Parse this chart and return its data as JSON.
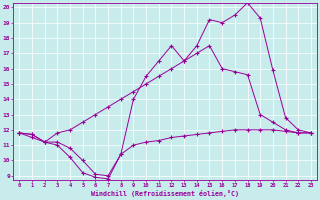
{
  "xlabel": "Windchill (Refroidissement éolien,°C)",
  "xlim": [
    0,
    23
  ],
  "ylim": [
    9,
    20
  ],
  "yticks": [
    9,
    10,
    11,
    12,
    13,
    14,
    15,
    16,
    17,
    18,
    19,
    20
  ],
  "xticks": [
    0,
    1,
    2,
    3,
    4,
    5,
    6,
    7,
    8,
    9,
    10,
    11,
    12,
    13,
    14,
    15,
    16,
    17,
    18,
    19,
    20,
    21,
    22,
    23
  ],
  "bg_color": "#c8ecec",
  "line_color": "#990099",
  "line1_x": [
    0,
    1,
    2,
    3,
    4,
    5,
    6,
    7,
    8,
    9,
    10,
    11,
    12,
    13,
    14,
    15,
    16,
    17,
    18,
    19,
    20,
    21,
    22,
    23
  ],
  "line1_y": [
    11.8,
    11.7,
    11.2,
    11.0,
    10.2,
    9.2,
    8.9,
    8.8,
    10.4,
    11.0,
    11.2,
    11.3,
    11.5,
    11.6,
    11.7,
    11.8,
    11.9,
    12.0,
    12.0,
    12.0,
    12.0,
    11.9,
    11.8,
    11.8
  ],
  "line2_x": [
    0,
    1,
    2,
    3,
    4,
    5,
    6,
    7,
    8,
    9,
    10,
    11,
    12,
    13,
    14,
    15,
    16,
    17,
    18,
    19,
    20,
    21,
    22,
    23
  ],
  "line2_y": [
    11.8,
    11.7,
    11.2,
    11.8,
    12.0,
    12.5,
    13.0,
    13.5,
    14.0,
    14.5,
    15.0,
    15.5,
    16.0,
    16.5,
    17.0,
    17.5,
    16.0,
    15.8,
    15.6,
    13.0,
    12.5,
    12.0,
    11.8,
    11.8
  ],
  "line3_x": [
    0,
    1,
    2,
    3,
    4,
    5,
    6,
    7,
    8,
    9,
    10,
    11,
    12,
    13,
    14,
    15,
    16,
    17,
    18,
    19,
    20,
    21,
    22,
    23
  ],
  "line3_y": [
    11.8,
    11.5,
    11.2,
    11.2,
    10.8,
    10.0,
    9.1,
    9.0,
    10.4,
    14.0,
    15.5,
    16.5,
    17.5,
    16.5,
    17.5,
    19.2,
    19.0,
    19.5,
    20.3,
    19.3,
    15.9,
    12.8,
    12.0,
    11.8
  ],
  "figsize": [
    3.2,
    2.0
  ],
  "dpi": 100
}
